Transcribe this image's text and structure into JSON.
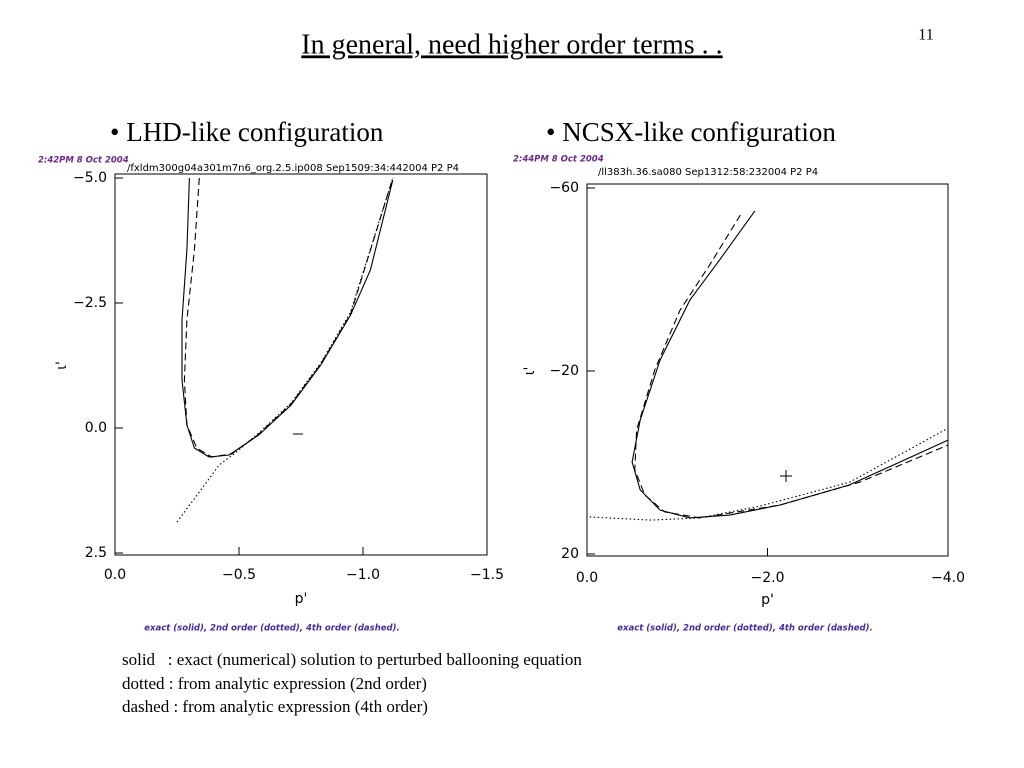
{
  "slide": {
    "title": "In general, need higher order terms . .",
    "page_number": "11",
    "bullets": [
      "• LHD-like configuration",
      "• NCSX-like configuration"
    ],
    "notes": [
      "solid   : exact (numerical) solution to perturbed ballooning equation",
      "dotted : from analytic expression (2nd order)",
      "dashed : from analytic expression (4th order)"
    ]
  },
  "chart_data": [
    {
      "type": "line",
      "stamp": "2:42PM 8 Oct 2004",
      "file": "/fxldm300g04a301m7n6_org.2.5.ip008  Sep1509:34:442004  P2  P4",
      "xlabel": "p'",
      "ylabel": "ι'",
      "caption": "exact (solid), 2nd order (dotted), 4th order (dashed).",
      "xlim": [
        0,
        -1.5
      ],
      "ylim": [
        2.5,
        -5.0
      ],
      "xticks": [
        {
          "value": 0,
          "label": "0.0"
        },
        {
          "value": -0.5,
          "label": "−0.5"
        },
        {
          "value": -1.0,
          "label": "−1.0"
        },
        {
          "value": -1.5,
          "label": "−1.5"
        }
      ],
      "yticks": [
        {
          "value": -5.0,
          "label": "−5.0"
        },
        {
          "value": -2.5,
          "label": "−2.5"
        },
        {
          "value": 0,
          "label": "0.0"
        },
        {
          "value": 2.5,
          "label": "2.5"
        }
      ],
      "series": [
        {
          "style": "solid",
          "color": "#000000",
          "x": [
            -0.3,
            -0.29,
            -0.27,
            -0.27,
            -0.29,
            -0.32,
            -0.38,
            -0.46,
            -0.58,
            -0.71,
            -0.83,
            -0.95,
            -1.03,
            -1.12
          ],
          "values": [
            -5.0,
            -3.56,
            -2.16,
            -0.96,
            -0.06,
            0.4,
            0.58,
            0.54,
            0.14,
            -0.46,
            -1.26,
            -2.26,
            -3.16,
            -4.96
          ]
        },
        {
          "style": "dotted",
          "color": "#000000",
          "x": [
            -0.25,
            -0.34,
            -0.42,
            -0.5,
            -0.58,
            -0.71,
            -0.83,
            -0.95,
            -1.12
          ],
          "values": [
            1.88,
            1.28,
            0.74,
            0.44,
            0.1,
            -0.5,
            -1.3,
            -2.32,
            -5.0
          ]
        },
        {
          "style": "dashed",
          "color": "#000000",
          "x": [
            -0.34,
            -0.32,
            -0.29,
            -0.28,
            -0.29,
            -0.33,
            -0.39,
            -0.47,
            -0.58,
            -0.71,
            -0.83,
            -0.95,
            -1.12
          ],
          "values": [
            -5.0,
            -3.56,
            -2.16,
            -0.96,
            -0.06,
            0.4,
            0.58,
            0.52,
            0.12,
            -0.48,
            -1.28,
            -2.28,
            -5.0
          ]
        }
      ]
    },
    {
      "type": "line",
      "stamp": "2:44PM 8 Oct 2004",
      "file": "/ll383h.36.sa080  Sep1312:58:232004  P2  P4",
      "xlabel": "p'",
      "ylabel": "ι'",
      "caption": "exact (solid), 2nd order (dotted), 4th order (dashed).",
      "xlim": [
        0,
        -4.0
      ],
      "ylim": [
        20,
        -60
      ],
      "xticks": [
        {
          "value": 0,
          "label": "0.0"
        },
        {
          "value": -2.0,
          "label": "−2.0"
        },
        {
          "value": -4.0,
          "label": "−4.0"
        }
      ],
      "yticks": [
        {
          "value": -60,
          "label": "−60"
        },
        {
          "value": -20,
          "label": "−20"
        },
        20
      ],
      "series": [
        {
          "style": "solid",
          "color": "#000000",
          "x": [
            -1.86,
            -1.47,
            -1.14,
            -0.81,
            -0.59,
            -0.5,
            -0.59,
            -0.81,
            -1.14,
            -1.58,
            -2.14,
            -2.91,
            -4.0
          ],
          "values": [
            -55.0,
            -44.3,
            -35.5,
            -22.4,
            -9.3,
            -0.1,
            6.0,
            10.4,
            12.1,
            11.5,
            9.3,
            4.9,
            -4.9
          ]
        },
        {
          "style": "dotted",
          "color": "#000000",
          "x": [
            -0.03,
            -0.7,
            -1.25,
            -1.92,
            -2.91,
            -4.0
          ],
          "values": [
            11.9,
            12.6,
            12.1,
            9.5,
            4.3,
            -7.5
          ]
        },
        {
          "style": "dashed",
          "color": "#000000",
          "x": [
            -1.7,
            -1.36,
            -1.03,
            -0.75,
            -0.55,
            -0.53,
            -0.64,
            -0.86,
            -1.25,
            -2.14,
            -3.02,
            -4.0
          ],
          "values": [
            -54.1,
            -43.2,
            -33.3,
            -20.2,
            -7.1,
            1.6,
            7.1,
            10.8,
            12.1,
            9.3,
            4.3,
            -3.8
          ]
        }
      ]
    }
  ]
}
